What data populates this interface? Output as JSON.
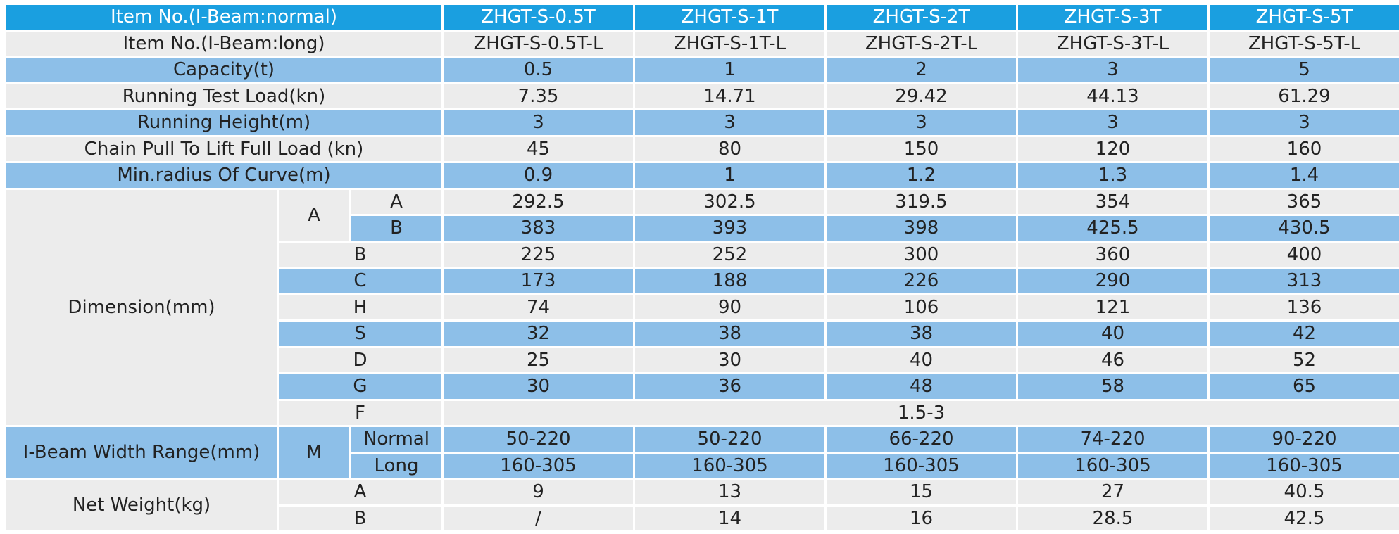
{
  "colors": {
    "header": "#1a9fe0",
    "blue_row": "#8dbfe8",
    "gray_row": "#ececec"
  },
  "header": {
    "label": "Item No.(I-Beam:normal)",
    "models": [
      "ZHGT-S-0.5T",
      "ZHGT-S-1T",
      "ZHGT-S-2T",
      "ZHGT-S-3T",
      "ZHGT-S-5T"
    ]
  },
  "long_items": {
    "label": "Item No.(I-Beam:long)",
    "values": [
      "ZHGT-S-0.5T-L",
      "ZHGT-S-1T-L",
      "ZHGT-S-2T-L",
      "ZHGT-S-3T-L",
      "ZHGT-S-5T-L"
    ]
  },
  "capacity": {
    "label": "Capacity(t)",
    "values": [
      "0.5",
      "1",
      "2",
      "3",
      "5"
    ]
  },
  "test_load": {
    "label": "Running Test Load(kn)",
    "values": [
      "7.35",
      "14.71",
      "29.42",
      "44.13",
      "61.29"
    ]
  },
  "running_height": {
    "label": "Running Height(m)",
    "values": [
      "3",
      "3",
      "3",
      "3",
      "3"
    ]
  },
  "chain_pull": {
    "label": "Chain Pull To Lift Full Load (kn)",
    "values": [
      "45",
      "80",
      "150",
      "120",
      "160"
    ]
  },
  "min_radius": {
    "label": "Min.radius Of Curve(m)",
    "values": [
      "0.9",
      "1",
      "1.2",
      "1.3",
      "1.4"
    ]
  },
  "dimension": {
    "label": "Dimension(mm)",
    "a_group": "A",
    "aa": {
      "label": "A",
      "values": [
        "292.5",
        "302.5",
        "319.5",
        "354",
        "365"
      ]
    },
    "ab": {
      "label": "B",
      "values": [
        "383",
        "393",
        "398",
        "425.5",
        "430.5"
      ]
    },
    "b": {
      "label": "B",
      "values": [
        "225",
        "252",
        "300",
        "360",
        "400"
      ]
    },
    "c": {
      "label": "C",
      "values": [
        "173",
        "188",
        "226",
        "290",
        "313"
      ]
    },
    "h": {
      "label": "H",
      "values": [
        "74",
        "90",
        "106",
        "121",
        "136"
      ]
    },
    "s": {
      "label": "S",
      "values": [
        "32",
        "38",
        "38",
        "40",
        "42"
      ]
    },
    "d": {
      "label": "D",
      "values": [
        "25",
        "30",
        "40",
        "46",
        "52"
      ]
    },
    "g": {
      "label": "G",
      "values": [
        "30",
        "36",
        "48",
        "58",
        "65"
      ]
    },
    "f": {
      "label": "F",
      "value": "1.5-3"
    }
  },
  "ibeam": {
    "label": "I-Beam Width Range(mm)",
    "m": "M",
    "normal": {
      "label": "Normal",
      "values": [
        "50-220",
        "50-220",
        "66-220",
        "74-220",
        "90-220"
      ]
    },
    "long": {
      "label": "Long",
      "values": [
        "160-305",
        "160-305",
        "160-305",
        "160-305",
        "160-305"
      ]
    }
  },
  "net_weight": {
    "label": "Net Weight(kg)",
    "a": {
      "label": "A",
      "values": [
        "9",
        "13",
        "15",
        "27",
        "40.5"
      ]
    },
    "b": {
      "label": "B",
      "values": [
        "/",
        "14",
        "16",
        "28.5",
        "42.5"
      ]
    }
  }
}
